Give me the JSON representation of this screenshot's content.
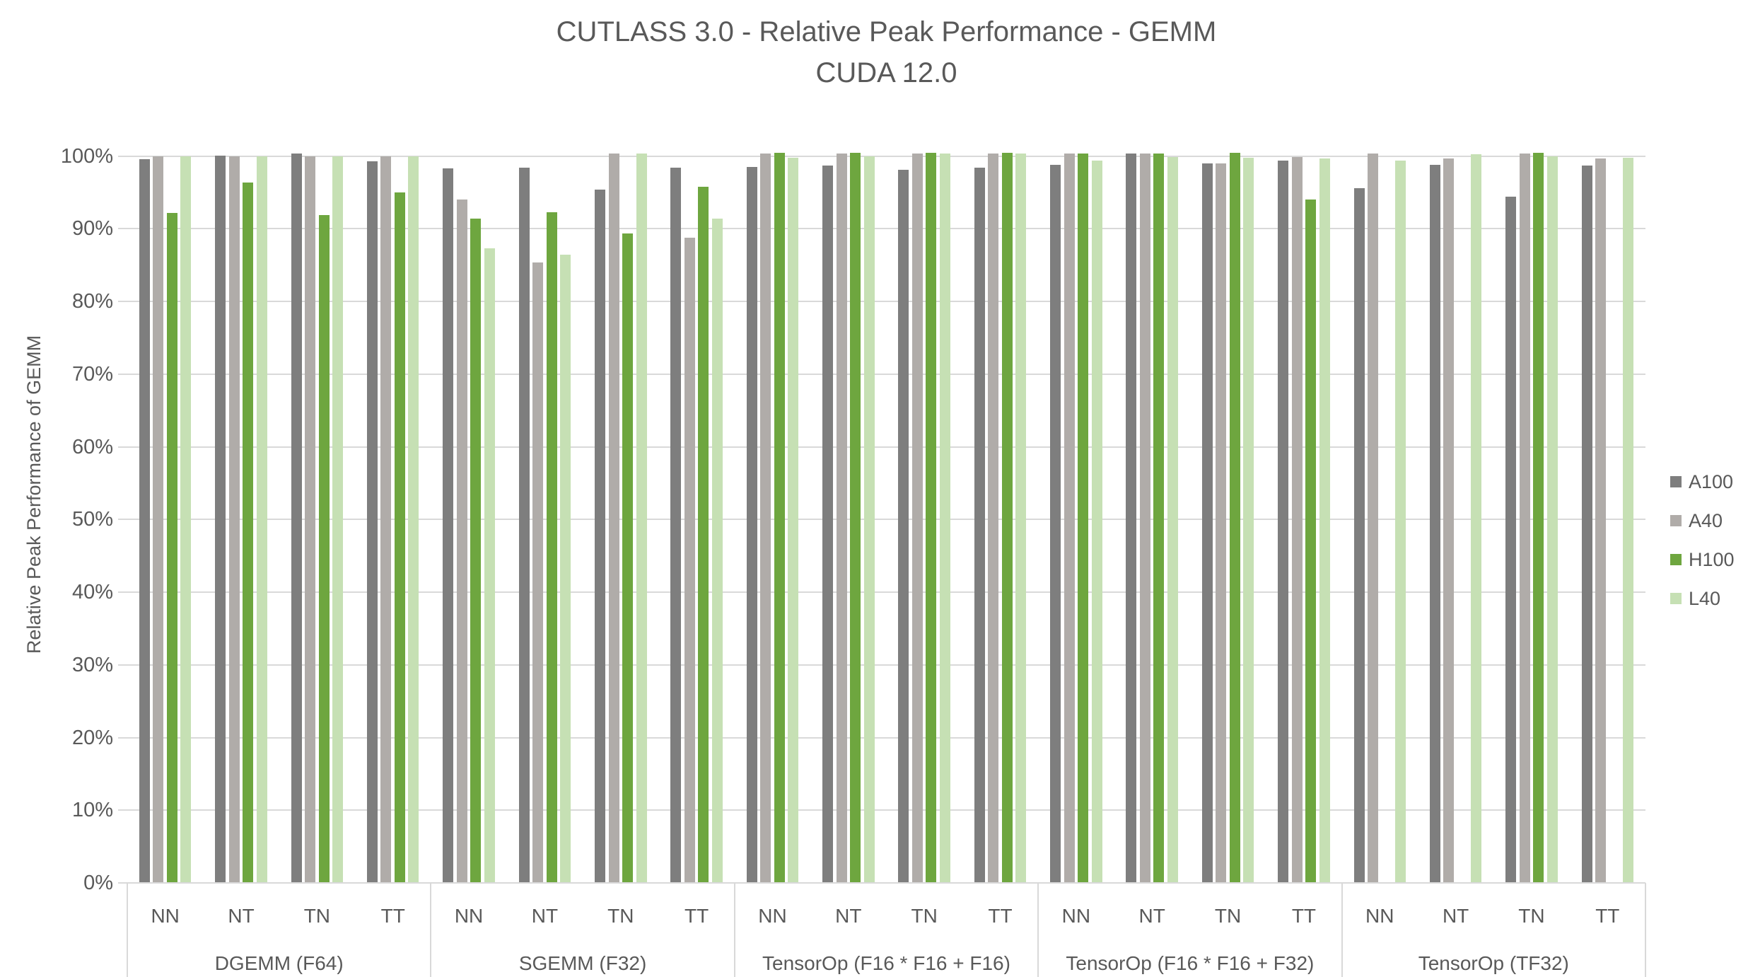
{
  "title": {
    "line1": "CUTLASS 3.0 - Relative Peak Performance - GEMM",
    "line2": "CUDA 12.0"
  },
  "y_axis": {
    "title": "Relative Peak Performance of GEMM",
    "tick_labels": [
      "0%",
      "10%",
      "20%",
      "30%",
      "40%",
      "50%",
      "60%",
      "70%",
      "80%",
      "90%",
      "100%"
    ]
  },
  "chart_data": {
    "type": "bar",
    "title": "CUTLASS 3.0 - Relative Peak Performance - GEMM",
    "subtitle": "CUDA 12.0",
    "xlabel": "",
    "ylabel": "Relative Peak Performance of GEMM",
    "ylim": [
      0,
      100
    ],
    "ytick_step": 10,
    "ytick_format": "percent",
    "grid": "horizontal",
    "legend_position": "right",
    "groups": [
      "DGEMM (F64)",
      "SGEMM (F32)",
      "TensorOp (F16 * F16 + F16)",
      "TensorOp (F16 * F16 + F32)",
      "TensorOp (TF32)"
    ],
    "subcategories": [
      "NN",
      "NT",
      "TN",
      "TT"
    ],
    "series": [
      {
        "name": "A100",
        "color": "#7E7E7E",
        "values": [
          [
            99.6,
            100.1,
            100.4,
            99.3
          ],
          [
            98.3,
            98.4,
            95.4,
            98.4
          ],
          [
            98.5,
            98.7,
            98.1,
            98.4
          ],
          [
            98.8,
            100.4,
            99.0,
            99.4
          ],
          [
            95.6,
            98.8,
            94.4,
            98.7
          ]
        ]
      },
      {
        "name": "A40",
        "color": "#B0ACA9",
        "values": [
          [
            100.0,
            100.0,
            100.0,
            100.0
          ],
          [
            94.0,
            85.4,
            100.4,
            88.8
          ],
          [
            100.4,
            100.4,
            100.4,
            100.4
          ],
          [
            100.4,
            100.4,
            99.0,
            99.9
          ],
          [
            100.4,
            99.7,
            100.4,
            99.7
          ]
        ]
      },
      {
        "name": "H100",
        "color": "#6EA63F",
        "values": [
          [
            92.2,
            96.4,
            91.9,
            95.0
          ],
          [
            91.4,
            92.3,
            89.4,
            95.8
          ],
          [
            100.5,
            100.5,
            100.5,
            100.5
          ],
          [
            100.4,
            100.4,
            100.5,
            94.0
          ],
          [
            null,
            null,
            100.5,
            null
          ]
        ]
      },
      {
        "name": "L40",
        "color": "#C6E0B4",
        "values": [
          [
            100.0,
            100.0,
            100.0,
            100.0
          ],
          [
            87.3,
            86.4,
            100.4,
            91.4
          ],
          [
            99.8,
            100.0,
            100.4,
            100.4
          ],
          [
            99.4,
            99.9,
            99.8,
            99.7
          ],
          [
            99.4,
            100.3,
            100.0,
            99.8
          ]
        ]
      }
    ]
  }
}
